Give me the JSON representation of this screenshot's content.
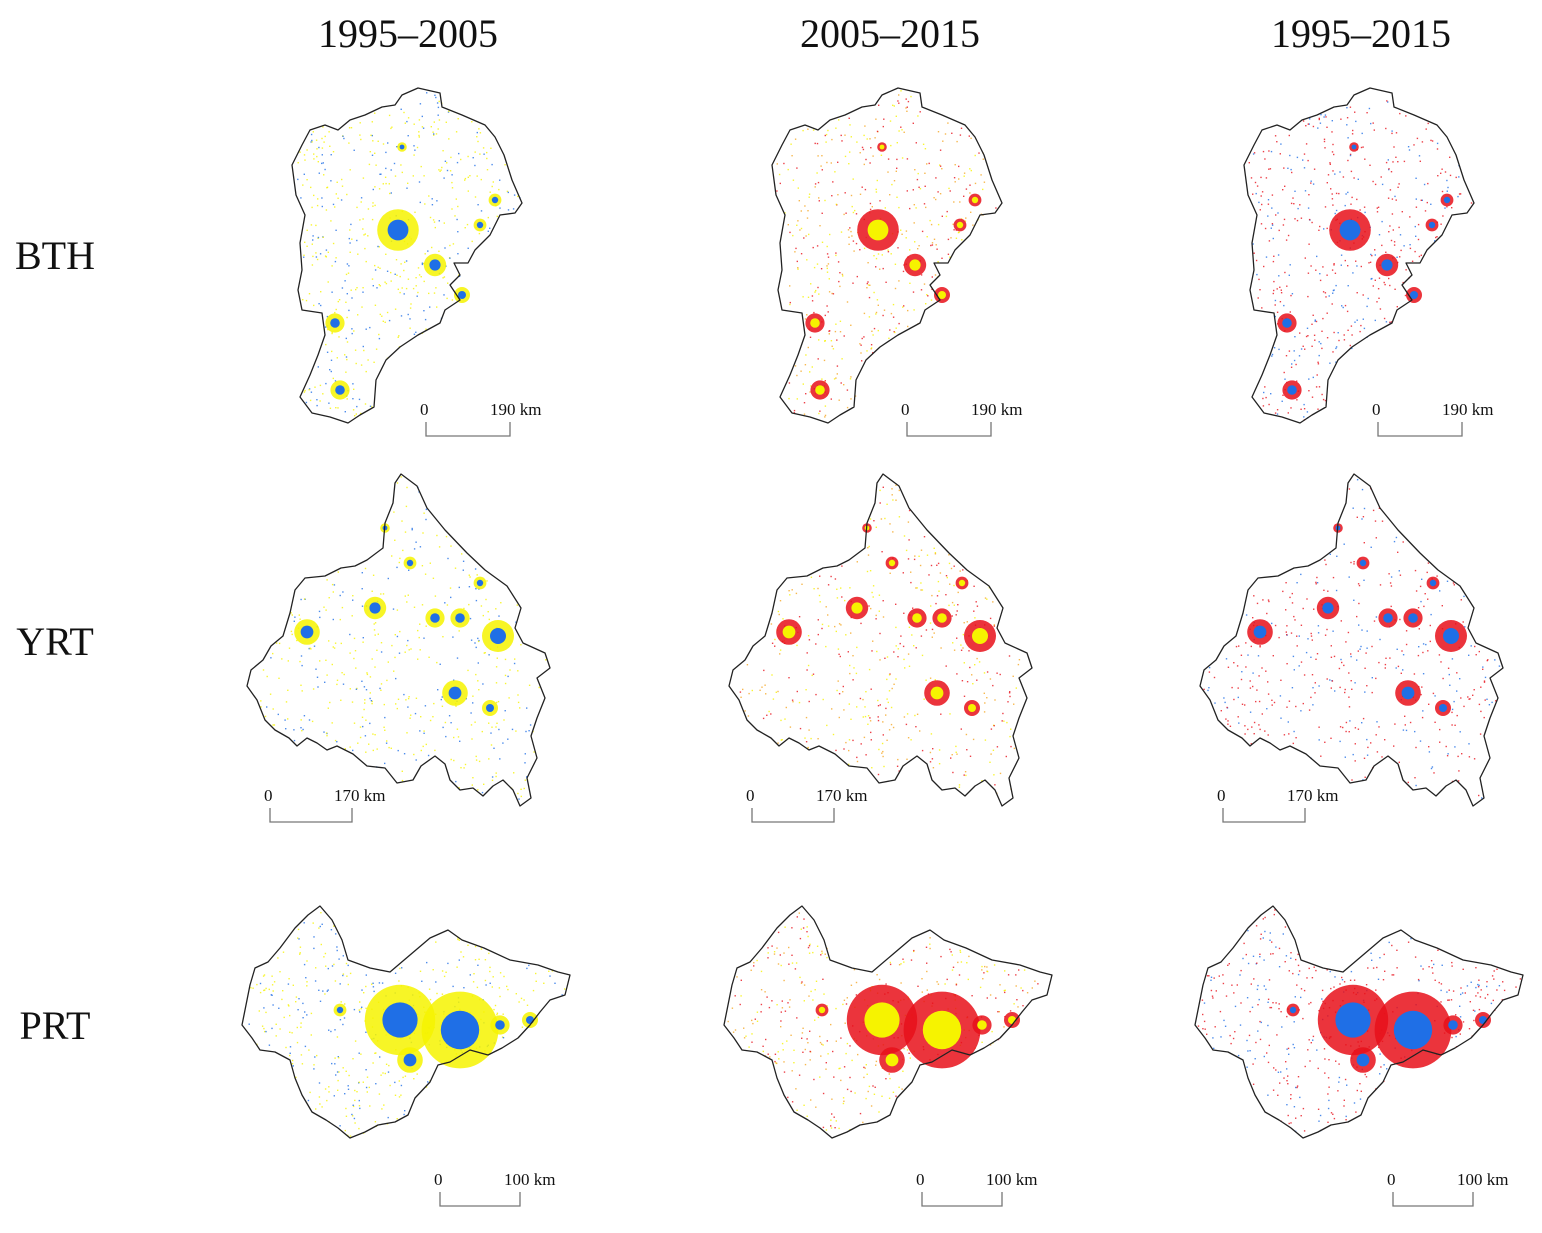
{
  "columns": [
    "1995–2005",
    "2005–2015",
    "1995–2015"
  ],
  "rows": [
    "BTH",
    "YRT",
    "PRT"
  ],
  "scales": [
    {
      "zero": "0",
      "distance": "190 km"
    },
    {
      "zero": "0",
      "distance": "170 km"
    },
    {
      "zero": "0",
      "distance": "100 km"
    }
  ],
  "colors": {
    "blue": "#1f6fe6",
    "yellow": "#f6f300",
    "red": "#e8101a",
    "orange": "#f5a623",
    "outline": "#222222"
  }
}
